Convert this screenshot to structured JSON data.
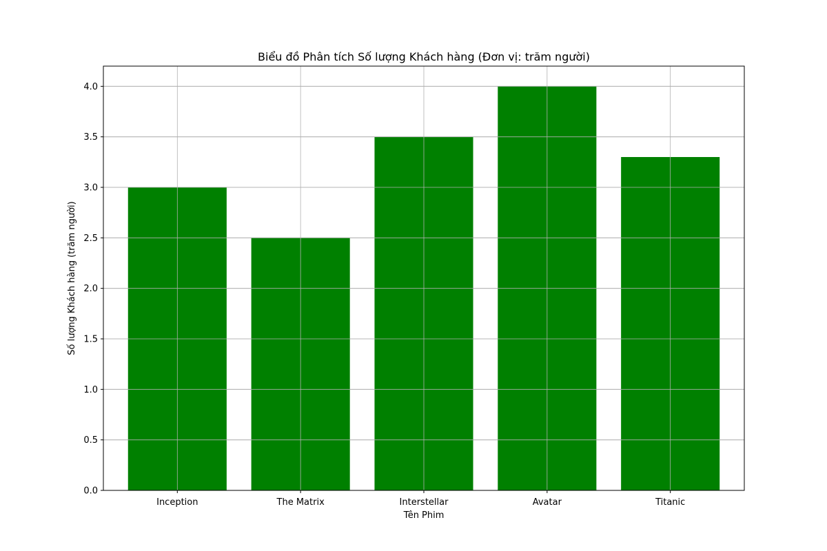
{
  "chart_data": {
    "type": "bar",
    "title": "Biểu đồ Phân tích Số lượng Khách hàng (Đơn vị: trăm người)",
    "xlabel": "Tên Phim",
    "ylabel": "Số lượng Khách hàng (trăm người)",
    "categories": [
      "Inception",
      "The Matrix",
      "Interstellar",
      "Avatar",
      "Titanic"
    ],
    "values": [
      3.0,
      2.5,
      3.5,
      4.0,
      3.3
    ],
    "ylim": [
      0,
      4.2
    ],
    "yticks": [
      "0.0",
      "0.5",
      "1.0",
      "1.5",
      "2.0",
      "2.5",
      "3.0",
      "3.5",
      "4.0"
    ],
    "grid": true,
    "bar_color": "#008000",
    "grid_color": "#b0b0b0"
  }
}
